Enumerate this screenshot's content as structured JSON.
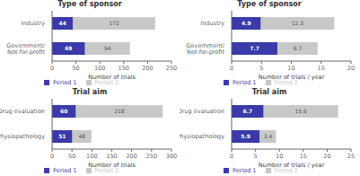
{
  "chart_data": [
    {
      "type": "bar",
      "title": "Type of sponsor",
      "x_label": "Number of trials",
      "orientation": "horizontal",
      "stacked": true,
      "data_labels": true,
      "legend": "bottom",
      "grid": false,
      "categories": [
        "Industry",
        "Government/ Not-for-profit"
      ],
      "series": [
        {
          "name": "Period 1",
          "color": "#3a3aaa",
          "values": [
            44,
            69
          ]
        },
        {
          "name": "Period 2",
          "color": "#c8c8c8",
          "values": [
            172,
            94
          ]
        }
      ],
      "xlim": [
        0,
        250
      ],
      "xticks": [
        0,
        50,
        100,
        150,
        200,
        250
      ]
    },
    {
      "type": "bar",
      "title": "Type of sponsor",
      "x_label": "Number of trials / year",
      "orientation": "horizontal",
      "stacked": true,
      "data_labels": true,
      "legend": "bottom",
      "grid": false,
      "categories": [
        "Industry",
        "Government/ Not-for-profit"
      ],
      "series": [
        {
          "name": "Period 1",
          "color": "#3a3aaa",
          "values": [
            4.9,
            7.7
          ]
        },
        {
          "name": "Period 2",
          "color": "#c8c8c8",
          "values": [
            12.3,
            6.7
          ]
        }
      ],
      "xlim": [
        0,
        20
      ],
      "xticks": [
        0,
        5,
        10,
        15,
        20
      ]
    },
    {
      "type": "bar",
      "title": "Trial aim",
      "x_label": "Number of trials",
      "orientation": "horizontal",
      "stacked": true,
      "data_labels": true,
      "legend": "bottom",
      "grid": false,
      "categories": [
        "Drug evaluation",
        "Physiopathology"
      ],
      "series": [
        {
          "name": "Period 1",
          "color": "#3a3aaa",
          "values": [
            60,
            51
          ]
        },
        {
          "name": "Period 2",
          "color": "#c8c8c8",
          "values": [
            218,
            48
          ]
        }
      ],
      "xlim": [
        0,
        300
      ],
      "xticks": [
        0,
        50,
        100,
        150,
        200,
        250,
        300
      ]
    },
    {
      "type": "bar",
      "title": "Trial aim",
      "x_label": "Number of trials / year",
      "orientation": "horizontal",
      "stacked": true,
      "data_labels": true,
      "legend": "bottom",
      "grid": false,
      "categories": [
        "Drug evaluation",
        "Physiopathology"
      ],
      "series": [
        {
          "name": "Period 1",
          "color": "#3a3aaa",
          "values": [
            6.7,
            5.9
          ]
        },
        {
          "name": "Period 2",
          "color": "#c8c8c8",
          "values": [
            15.6,
            3.4
          ]
        }
      ],
      "xlim": [
        0,
        25
      ],
      "xticks": [
        0,
        5,
        10,
        15,
        20,
        25
      ]
    }
  ]
}
